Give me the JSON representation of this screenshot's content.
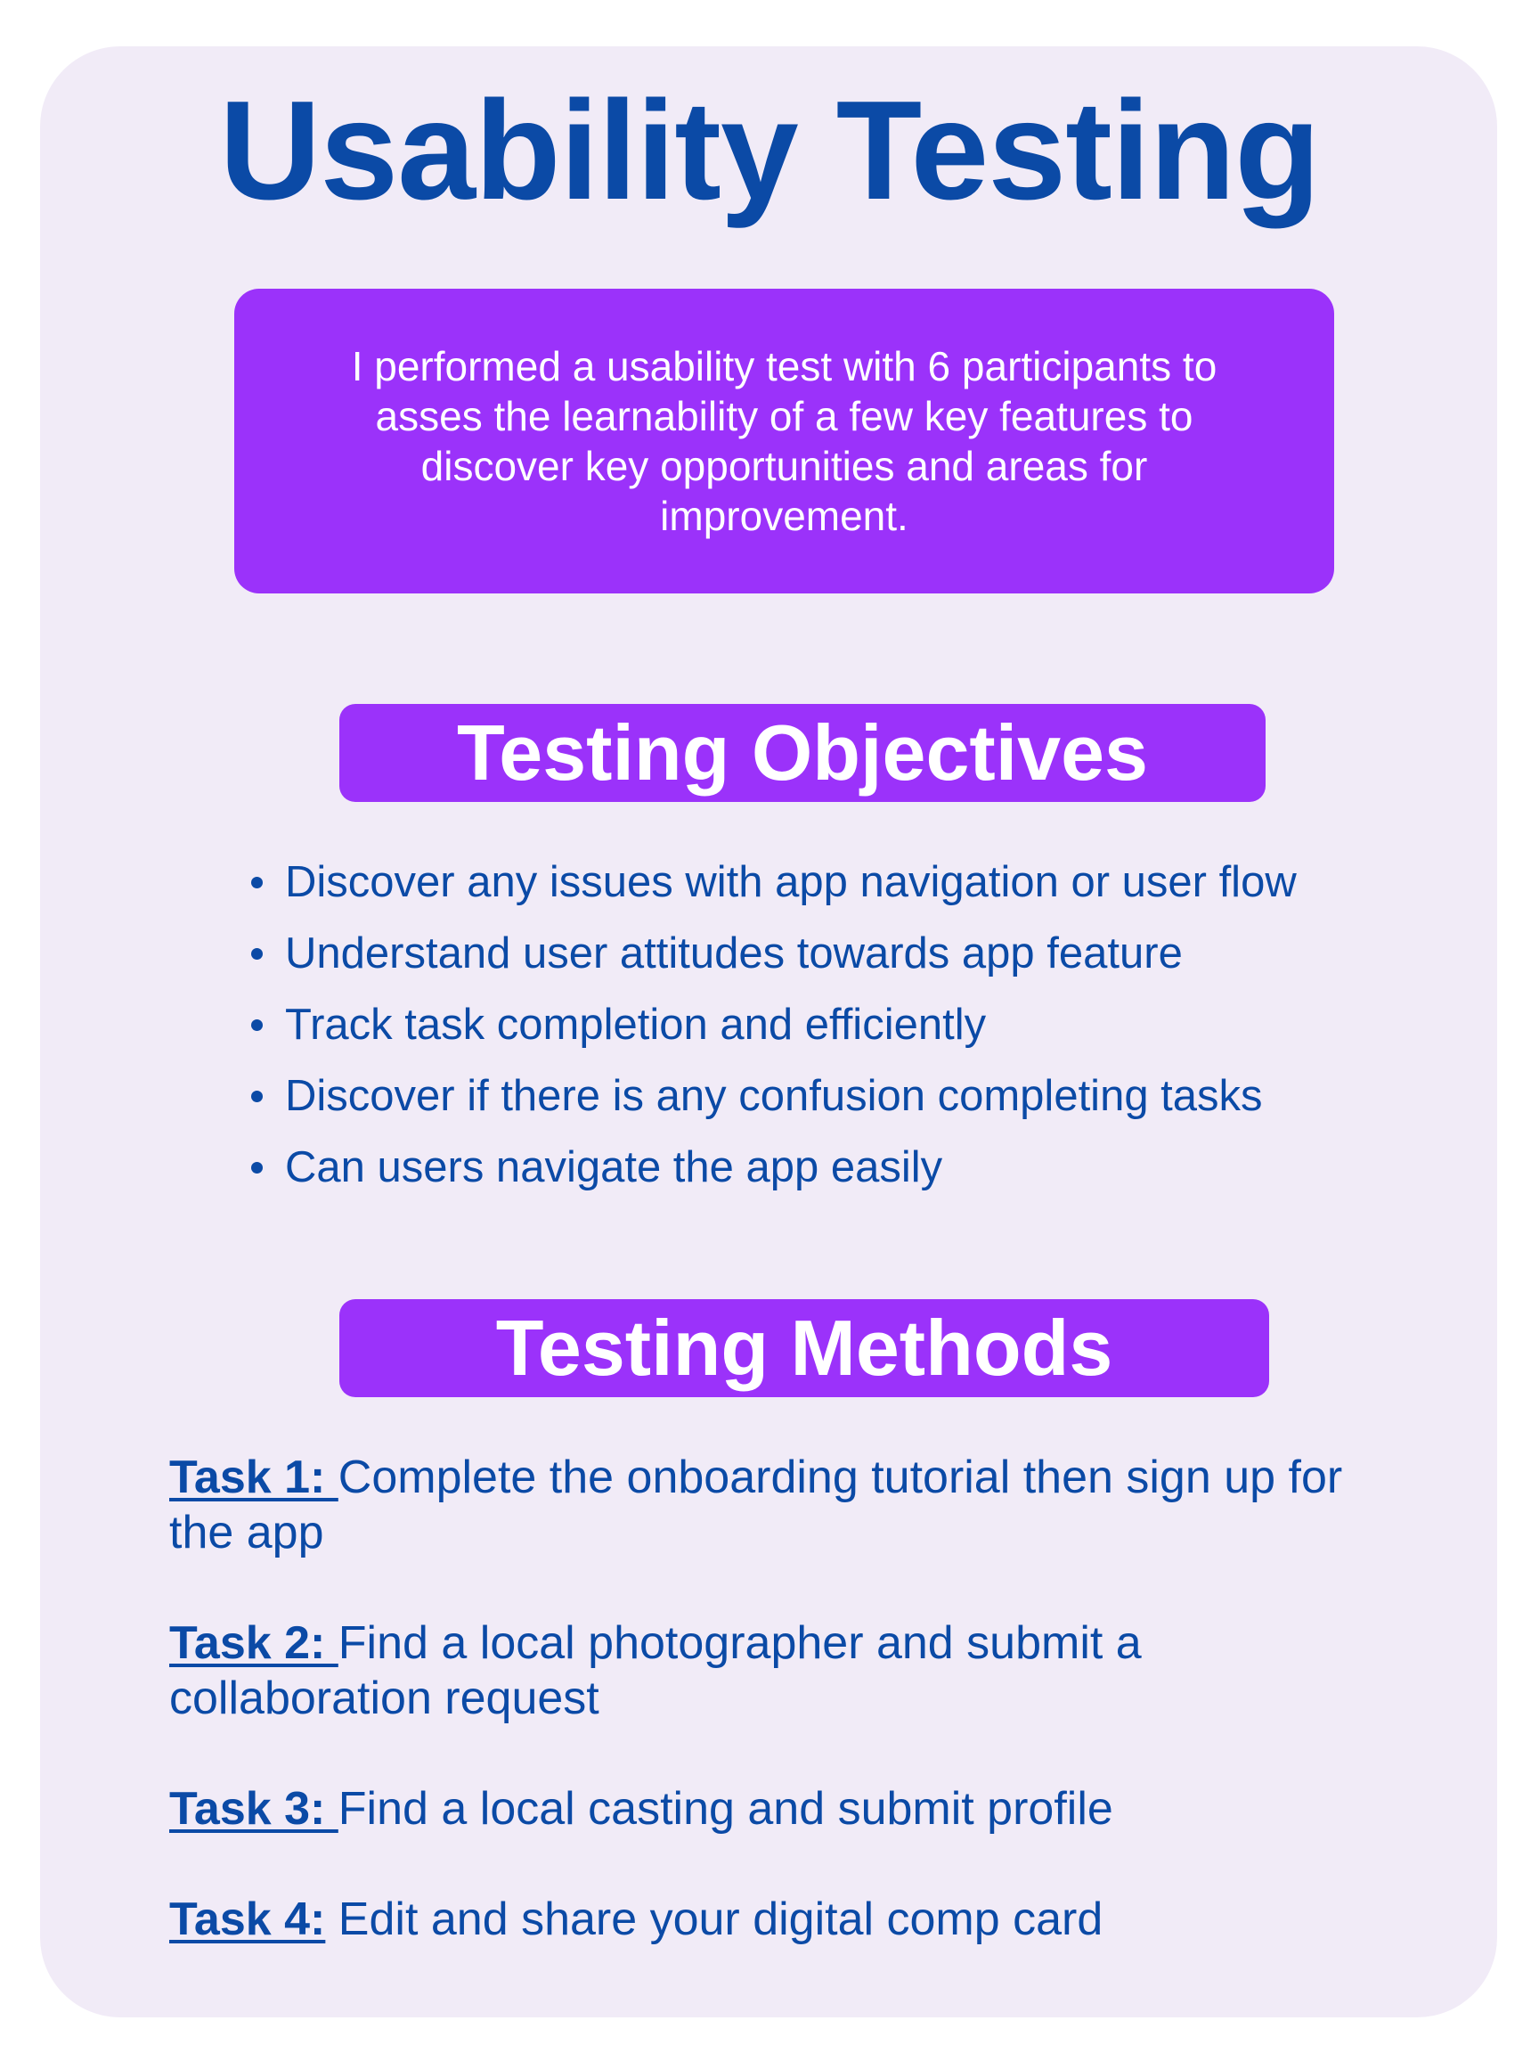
{
  "title": "Usability Testing",
  "intro": "I performed a usability test with 6 participants to asses the learnability of a few key features to discover key opportunities and areas for improvement.",
  "objectives": {
    "heading": "Testing Objectives",
    "items": [
      "Discover any issues with app navigation or user flow",
      "Understand user attitudes towards app feature",
      "Track task completion and efficiently",
      "Discover if there is any confusion completing tasks",
      "Can users navigate the app easily"
    ]
  },
  "methods": {
    "heading": "Testing Methods",
    "tasks": [
      {
        "label": "Task 1: ",
        "text": "Complete the onboarding tutorial then sign up for the app"
      },
      {
        "label": "Task 2: ",
        "text": "Find a local photographer and submit a collaboration request"
      },
      {
        "label": "Task 3: ",
        "text": "Find a local casting and submit profile"
      },
      {
        "label": "Task 4:",
        "text": " Edit and share your digital comp card"
      }
    ]
  },
  "colors": {
    "card_background": "#f1ebf7",
    "accent_purple": "#9b32fa",
    "text_blue": "#0b4aa6"
  }
}
